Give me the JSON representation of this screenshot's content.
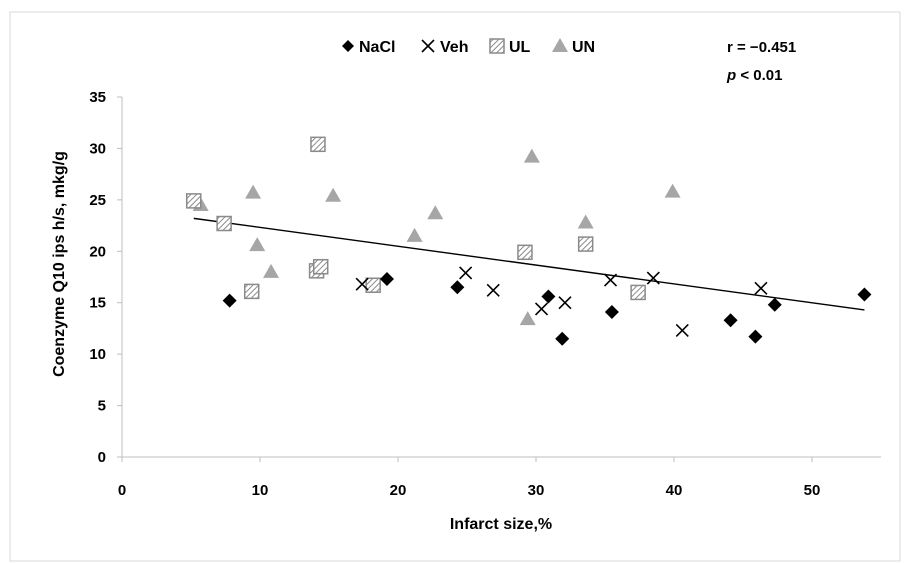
{
  "chart_data": {
    "type": "scatter",
    "xlabel": "Infarct size,%",
    "ylabel": "Coenzyme Q10 ips h/s, mkg/g",
    "xlim": [
      0,
      55
    ],
    "ylim": [
      0,
      35
    ],
    "x_ticks": [
      0,
      10,
      20,
      30,
      40,
      50
    ],
    "y_ticks": [
      0,
      5,
      10,
      15,
      20,
      25,
      30,
      35
    ],
    "x_tick_labels": [
      "0",
      "10",
      "20",
      "30",
      "40",
      "50"
    ],
    "y_tick_labels": [
      "0",
      "5",
      "10",
      "15",
      "20",
      "25",
      "30",
      "35"
    ],
    "grid": false,
    "legend_position": "top",
    "annotation": {
      "r_text": "r = −0.451",
      "p_symbol": "p",
      "p_rest": " < 0.01"
    },
    "trendline": {
      "x": [
        5.2,
        53.8
      ],
      "y": [
        23.2,
        14.3
      ]
    },
    "series": [
      {
        "name": "NaCl",
        "marker": "diamond",
        "color": "#000000",
        "points": [
          [
            7.8,
            15.2
          ],
          [
            19.2,
            17.3
          ],
          [
            24.3,
            16.5
          ],
          [
            30.9,
            15.6
          ],
          [
            31.9,
            11.5
          ],
          [
            35.5,
            14.1
          ],
          [
            44.1,
            13.3
          ],
          [
            45.9,
            11.7
          ],
          [
            47.3,
            14.8
          ],
          [
            53.8,
            15.8
          ]
        ]
      },
      {
        "name": "Veh",
        "marker": "x",
        "color": "#000000",
        "points": [
          [
            17.4,
            16.8
          ],
          [
            24.9,
            17.9
          ],
          [
            26.9,
            16.2
          ],
          [
            30.4,
            14.4
          ],
          [
            32.1,
            15.0
          ],
          [
            35.4,
            17.2
          ],
          [
            38.5,
            17.4
          ],
          [
            40.6,
            12.3
          ],
          [
            46.3,
            16.4
          ]
        ]
      },
      {
        "name": "UL",
        "marker": "hatched-square",
        "color": "#a6a6a6",
        "points": [
          [
            5.2,
            24.9
          ],
          [
            7.4,
            22.7
          ],
          [
            9.4,
            16.1
          ],
          [
            14.2,
            30.4
          ],
          [
            14.1,
            18.1
          ],
          [
            14.4,
            18.5
          ],
          [
            18.2,
            16.7
          ],
          [
            29.2,
            19.9
          ],
          [
            33.6,
            20.7
          ],
          [
            37.4,
            16.0
          ]
        ]
      },
      {
        "name": "UN",
        "marker": "triangle",
        "color": "#a6a6a6",
        "points": [
          [
            5.7,
            24.5
          ],
          [
            9.5,
            25.7
          ],
          [
            9.8,
            20.6
          ],
          [
            10.8,
            18.0
          ],
          [
            15.3,
            25.4
          ],
          [
            21.2,
            21.5
          ],
          [
            22.7,
            23.7
          ],
          [
            29.4,
            13.4
          ],
          [
            29.7,
            29.2
          ],
          [
            33.6,
            22.8
          ],
          [
            39.9,
            25.8
          ]
        ]
      }
    ]
  }
}
